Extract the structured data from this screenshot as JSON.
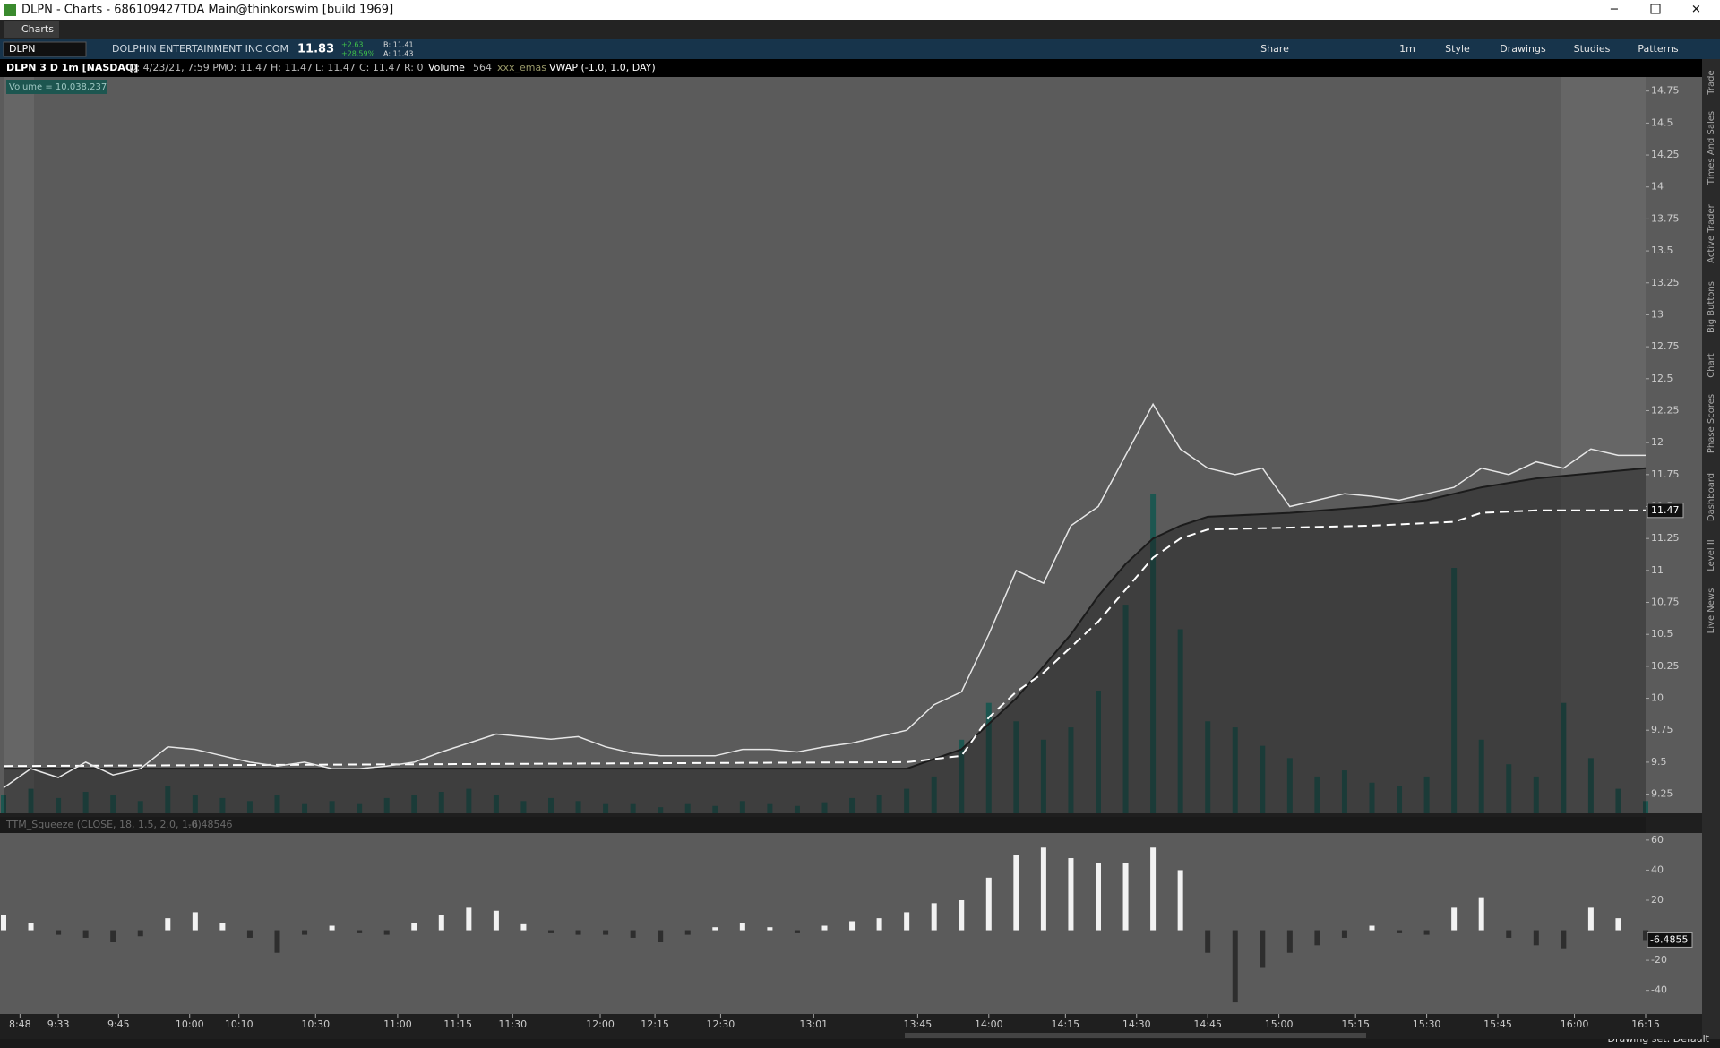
{
  "window": {
    "title": "DLPN - Charts - 686109427TDA Main@thinkorswim [build 1969]"
  },
  "tabs": [
    "Charts"
  ],
  "toolbar": {
    "symbol": "DLPN",
    "company": "DOLPHIN ENTERTAINMENT INC COM",
    "last": "11.83",
    "change": "+2.63",
    "change_pct": "+28.59%",
    "bid": "B: 11.41",
    "ask": "A: 11.43",
    "buttons": [
      "Share",
      "1m",
      "Style",
      "Drawings",
      "Studies",
      "Patterns"
    ]
  },
  "header": {
    "items": [
      "DLPN 3 D 1m [NASDAQ]",
      "D: 4/23/21, 7:59 PM",
      "O: 11.47",
      "H: 11.47",
      "L: 11.47",
      "C: 11.47",
      "R: 0",
      "Volume",
      "564",
      "xxx_emas",
      "VWAP (-1.0, 1.0, DAY)"
    ]
  },
  "chart_data": [
    {
      "type": "line",
      "volume_label": "Volume = 10,038,237",
      "last_price": 11.47,
      "xlim": [
        0,
        300
      ],
      "ylim": [
        9.1,
        14.86
      ],
      "y2lim": [
        0,
        1200000
      ],
      "yticks": [
        9.25,
        9.5,
        9.75,
        10,
        10.25,
        10.5,
        10.75,
        11,
        11.25,
        11.5,
        11.75,
        12,
        12.25,
        12.5,
        12.75,
        13,
        13.25,
        13.5,
        13.75,
        14,
        14.25,
        14.5,
        14.75
      ],
      "series": [
        {
          "style": "bar",
          "axis": "y2",
          "color": "#1d5650",
          "x": [
            0,
            5,
            10,
            15,
            20,
            25,
            30,
            35,
            40,
            45,
            50,
            55,
            60,
            65,
            70,
            75,
            80,
            85,
            90,
            95,
            100,
            105,
            110,
            115,
            120,
            125,
            130,
            135,
            140,
            145,
            150,
            155,
            160,
            165,
            170,
            175,
            180,
            185,
            190,
            195,
            200,
            205,
            210,
            215,
            220,
            225,
            230,
            235,
            240,
            245,
            250,
            255,
            260,
            265,
            270,
            275,
            280,
            285,
            290,
            295,
            300
          ],
          "values": [
            30000,
            40000,
            25000,
            35000,
            30000,
            20000,
            45000,
            30000,
            25000,
            20000,
            30000,
            15000,
            20000,
            15000,
            25000,
            30000,
            35000,
            40000,
            30000,
            20000,
            25000,
            20000,
            15000,
            15000,
            10000,
            15000,
            12000,
            20000,
            15000,
            12000,
            18000,
            25000,
            30000,
            40000,
            60000,
            120000,
            180000,
            150000,
            120000,
            140000,
            200000,
            340000,
            520000,
            300000,
            150000,
            140000,
            110000,
            90000,
            60000,
            70000,
            50000,
            45000,
            60000,
            400000,
            120000,
            80000,
            60000,
            180000,
            90000,
            40000,
            20000
          ]
        },
        {
          "style": "area",
          "color": "#1b1b1b",
          "x": [
            0,
            165,
            175,
            180,
            185,
            190,
            195,
            200,
            205,
            210,
            215,
            220,
            235,
            250,
            260,
            270,
            280,
            300
          ],
          "values": [
            9.45,
            9.45,
            9.6,
            9.8,
            10,
            10.25,
            10.5,
            10.8,
            11.05,
            11.25,
            11.35,
            11.42,
            11.45,
            11.5,
            11.55,
            11.65,
            11.72,
            11.8
          ]
        },
        {
          "style": "dashed",
          "color": "#ffffff",
          "x": [
            0,
            165,
            175,
            180,
            185,
            190,
            195,
            200,
            205,
            210,
            215,
            220,
            230,
            250,
            265,
            270,
            280,
            300
          ],
          "values": [
            9.47,
            9.5,
            9.55,
            9.85,
            10.05,
            10.2,
            10.4,
            10.6,
            10.85,
            11.1,
            11.25,
            11.32,
            11.33,
            11.35,
            11.38,
            11.45,
            11.47,
            11.47
          ]
        },
        {
          "style": "line",
          "color": "#e6e6e6",
          "x": [
            0,
            5,
            10,
            15,
            20,
            25,
            30,
            35,
            40,
            45,
            50,
            55,
            60,
            65,
            70,
            75,
            80,
            85,
            90,
            95,
            100,
            105,
            110,
            115,
            120,
            125,
            130,
            135,
            140,
            145,
            150,
            155,
            160,
            165,
            170,
            175,
            180,
            185,
            190,
            195,
            200,
            205,
            210,
            215,
            220,
            225,
            230,
            235,
            240,
            245,
            250,
            255,
            260,
            265,
            270,
            275,
            280,
            285,
            290,
            295,
            300
          ],
          "values": [
            9.3,
            9.45,
            9.38,
            9.5,
            9.4,
            9.45,
            9.62,
            9.6,
            9.55,
            9.5,
            9.47,
            9.5,
            9.45,
            9.45,
            9.47,
            9.5,
            9.58,
            9.65,
            9.72,
            9.7,
            9.68,
            9.7,
            9.62,
            9.57,
            9.55,
            9.55,
            9.55,
            9.6,
            9.6,
            9.58,
            9.62,
            9.65,
            9.7,
            9.75,
            9.95,
            10.05,
            10.5,
            11,
            10.9,
            11.35,
            11.5,
            11.9,
            12.3,
            11.95,
            11.8,
            11.75,
            11.8,
            11.5,
            11.55,
            11.6,
            11.58,
            11.55,
            11.6,
            11.65,
            11.8,
            11.75,
            11.85,
            11.8,
            11.95,
            11.9,
            11.9
          ]
        }
      ]
    },
    {
      "type": "bar",
      "study": "TTM_Squeeze (CLOSE, 18, 1.5, 2.0, 1.0)",
      "study_value": "-6.48546",
      "current_value": -6.4855,
      "up_color": "#f2f2f2",
      "down_color": "#2e2e2e",
      "xlim": [
        0,
        300
      ],
      "ylim": [
        -55.7,
        64.7
      ],
      "yticks": [
        60,
        40,
        20,
        -20,
        -40
      ],
      "xticks": [
        {
          "value": 3,
          "label": "8:48"
        },
        {
          "value": 10,
          "label": "9:33"
        },
        {
          "value": 21,
          "label": "9:45"
        },
        {
          "value": 34,
          "label": "10:00"
        },
        {
          "value": 43,
          "label": "10:10"
        },
        {
          "value": 57,
          "label": "10:30"
        },
        {
          "value": 72,
          "label": "11:00"
        },
        {
          "value": 83,
          "label": "11:15"
        },
        {
          "value": 93,
          "label": "11:30"
        },
        {
          "value": 109,
          "label": "12:00"
        },
        {
          "value": 119,
          "label": "12:15"
        },
        {
          "value": 131,
          "label": "12:30"
        },
        {
          "value": 148,
          "label": "13:01"
        },
        {
          "value": 167,
          "label": "13:45"
        },
        {
          "value": 180,
          "label": "14:00"
        },
        {
          "value": 194,
          "label": "14:15"
        },
        {
          "value": 207,
          "label": "14:30"
        },
        {
          "value": 220,
          "label": "14:45"
        },
        {
          "value": 233,
          "label": "15:00"
        },
        {
          "value": 247,
          "label": "15:15"
        },
        {
          "value": 260,
          "label": "15:30"
        },
        {
          "value": 273,
          "label": "15:45"
        },
        {
          "value": 287,
          "label": "16:00"
        },
        {
          "value": 300,
          "label": "16:15"
        }
      ],
      "x": [
        0,
        5,
        10,
        15,
        20,
        25,
        30,
        35,
        40,
        45,
        50,
        55,
        60,
        65,
        70,
        75,
        80,
        85,
        90,
        95,
        100,
        105,
        110,
        115,
        120,
        125,
        130,
        135,
        140,
        145,
        150,
        155,
        160,
        165,
        170,
        175,
        180,
        185,
        190,
        195,
        200,
        205,
        210,
        215,
        220,
        225,
        230,
        235,
        240,
        245,
        250,
        255,
        260,
        265,
        270,
        275,
        280,
        285,
        290,
        295,
        300
      ],
      "values": [
        10,
        5,
        -3,
        -5,
        -8,
        -4,
        8,
        12,
        5,
        -5,
        -15,
        -3,
        3,
        -2,
        -3,
        5,
        10,
        15,
        13,
        4,
        -2,
        -3,
        -3,
        -5,
        -8,
        -3,
        2,
        5,
        2,
        -2,
        3,
        6,
        8,
        12,
        18,
        20,
        35,
        50,
        55,
        48,
        45,
        45,
        55,
        40,
        -15,
        -48,
        -25,
        -15,
        -10,
        -5,
        3,
        -2,
        -3,
        15,
        22,
        -5,
        -10,
        -12,
        15,
        8,
        -6.5
      ]
    }
  ],
  "side_tabs": [
    "Trade",
    "Times And Sales",
    "Active Trader",
    "Big Buttons",
    "Chart",
    "Phase Scores",
    "Dashboard",
    "Level II",
    "Live News"
  ],
  "footer": {
    "drawing_set": "Drawing set: Default"
  }
}
